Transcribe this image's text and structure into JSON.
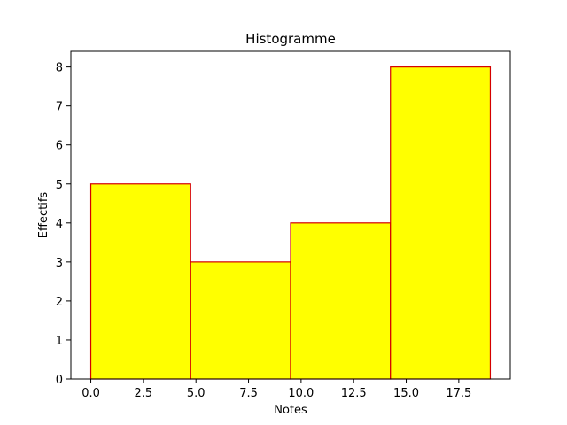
{
  "chart_data": {
    "type": "bar",
    "title": "Histogramme",
    "xlabel": "Notes",
    "ylabel": "Effectifs",
    "bins": [
      {
        "start": 0.0,
        "end": 4.75,
        "value": 5
      },
      {
        "start": 4.75,
        "end": 9.5,
        "value": 3
      },
      {
        "start": 9.5,
        "end": 14.25,
        "value": 4
      },
      {
        "start": 14.25,
        "end": 19.0,
        "value": 8
      }
    ],
    "xlim": [
      -0.95,
      19.95
    ],
    "ylim": [
      0,
      8.4
    ],
    "xticks": [
      0.0,
      2.5,
      5.0,
      7.5,
      10.0,
      12.5,
      15.0,
      17.5
    ],
    "xtick_labels": [
      "0.0",
      "2.5",
      "5.0",
      "7.5",
      "10.0",
      "12.5",
      "15.0",
      "17.5"
    ],
    "yticks": [
      0,
      1,
      2,
      3,
      4,
      5,
      6,
      7,
      8
    ],
    "ytick_labels": [
      "0",
      "1",
      "2",
      "3",
      "4",
      "5",
      "6",
      "7",
      "8"
    ],
    "grid": false,
    "bar_fill": "#ffff00",
    "bar_edge": "#d40000"
  }
}
